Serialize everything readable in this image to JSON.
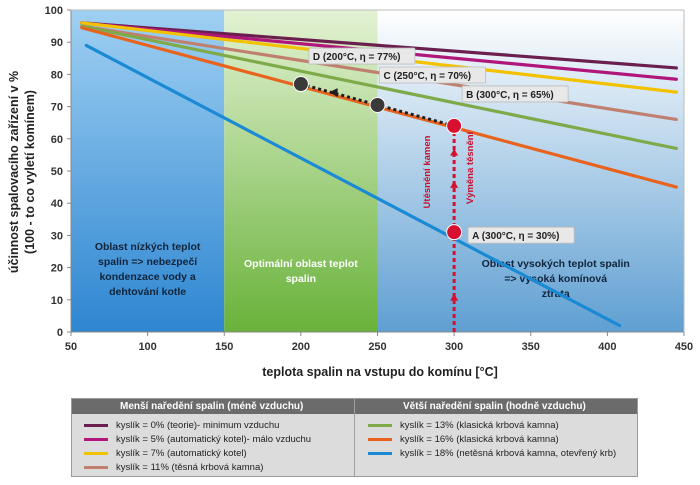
{
  "chart_data": {
    "type": "line",
    "xlabel": "teplota spalin na vstupu do komínu [°C]",
    "ylabel": "účinnost spalovacího zařízení v %",
    "ylabel2": "(100 - to co vyletí komínem)",
    "xlim": [
      50,
      450
    ],
    "ylim": [
      0,
      100
    ],
    "x_ticks": [
      "50",
      "100",
      "150",
      "200",
      "250",
      "300",
      "350",
      "400",
      "450"
    ],
    "y_ticks": [
      "0",
      "10",
      "20",
      "30",
      "40",
      "50",
      "60",
      "70",
      "80",
      "90",
      "100"
    ],
    "grid": false,
    "series": [
      {
        "name": "kyslík = 0% (teorie)- minimum vzduchu",
        "color": "#6a1f4f",
        "x": [
          57,
          445
        ],
        "y": [
          96,
          82
        ]
      },
      {
        "name": "kyslík = 5% (automatický kotel)- málo vzduchu",
        "color": "#b0177a",
        "x": [
          57,
          445
        ],
        "y": [
          96,
          78.5
        ]
      },
      {
        "name": "kyslík = 7% (automatický kotel)",
        "color": "#f2c200",
        "x": [
          57,
          445
        ],
        "y": [
          96,
          74.5
        ]
      },
      {
        "name": "kyslík = 11% (těsná krbová kamna)",
        "color": "#c08070",
        "x": [
          57,
          445
        ],
        "y": [
          95,
          66
        ]
      },
      {
        "name": "kyslík = 13% (klasická krbová kamna)",
        "color": "#7faa4a",
        "x": [
          57,
          445
        ],
        "y": [
          95,
          57
        ]
      },
      {
        "name": "kyslík = 16% (klasická krbová kamna)",
        "color": "#e8641e",
        "x": [
          57,
          445
        ],
        "y": [
          94.5,
          45
        ]
      },
      {
        "name": "kyslík = 18% (netěsná krbová kamna, otevřený krb)",
        "color": "#1a8ad4",
        "x": [
          60,
          408
        ],
        "y": [
          89,
          2
        ]
      }
    ],
    "regions": [
      {
        "x_range": [
          50,
          150
        ],
        "label": [
          "Oblast nízkých teplot",
          "spalin => nebezpečí",
          "kondenzace vody a",
          "dehtování kotle"
        ]
      },
      {
        "x_range": [
          150,
          250
        ],
        "label": [
          "Optimální oblast teplot",
          "spalin"
        ]
      },
      {
        "x_range": [
          250,
          450
        ],
        "label": [
          "Oblast vysokých teplot spalin",
          "=> vysoká komínová",
          "ztrata"
        ]
      }
    ],
    "points": [
      {
        "label": "A (300°C, η = 30%)",
        "x": 300,
        "y": 31,
        "color": "#d6102e"
      },
      {
        "label": "B (300°C, η = 65%)",
        "x": 300,
        "y": 64,
        "color": "#d6102e"
      },
      {
        "label": "C (250°C, η = 70%)",
        "x": 250,
        "y": 70.5,
        "color": "#3a3a3a"
      },
      {
        "label": "D (200°C, η = 77%)",
        "x": 200,
        "y": 77,
        "color": "#3a3a3a"
      }
    ],
    "annotations": [
      "Utěsnění kamen",
      "Výměna těsnění"
    ]
  },
  "legend": {
    "left_header": "Menší naředění spalin (méně vzduchu)",
    "right_header": "Větší naředění spalin (hodně vzduchu)"
  }
}
